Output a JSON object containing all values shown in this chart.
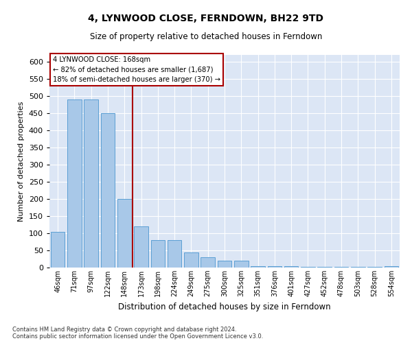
{
  "title": "4, LYNWOOD CLOSE, FERNDOWN, BH22 9TD",
  "subtitle": "Size of property relative to detached houses in Ferndown",
  "xlabel": "Distribution of detached houses by size in Ferndown",
  "ylabel": "Number of detached properties",
  "footer_line1": "Contains HM Land Registry data © Crown copyright and database right 2024.",
  "footer_line2": "Contains public sector information licensed under the Open Government Licence v3.0.",
  "annotation_title": "4 LYNWOOD CLOSE: 168sqm",
  "annotation_line1": "← 82% of detached houses are smaller (1,687)",
  "annotation_line2": "18% of semi-detached houses are larger (370) →",
  "categories": [
    "46sqm",
    "71sqm",
    "97sqm",
    "122sqm",
    "148sqm",
    "173sqm",
    "198sqm",
    "224sqm",
    "249sqm",
    "275sqm",
    "300sqm",
    "325sqm",
    "351sqm",
    "376sqm",
    "401sqm",
    "427sqm",
    "452sqm",
    "478sqm",
    "503sqm",
    "528sqm",
    "554sqm"
  ],
  "values": [
    105,
    490,
    490,
    450,
    200,
    120,
    80,
    80,
    45,
    30,
    20,
    20,
    5,
    5,
    5,
    3,
    3,
    3,
    3,
    3,
    5
  ],
  "bar_color": "#a8c8e8",
  "bar_edge_color": "#5a9fd4",
  "vline_color": "#aa0000",
  "box_color": "#aa0000",
  "bg_color": "#dce6f5",
  "grid_color": "#ffffff",
  "ylim": [
    0,
    620
  ],
  "yticks": [
    0,
    50,
    100,
    150,
    200,
    250,
    300,
    350,
    400,
    450,
    500,
    550,
    600
  ]
}
